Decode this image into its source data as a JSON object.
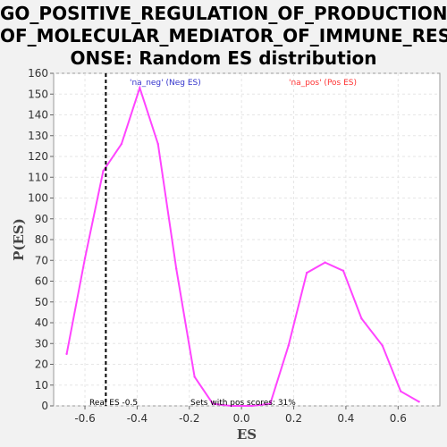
{
  "title_lines": [
    "GO_POSITIVE_REGULATION_OF_PRODUCTION_",
    "OF_MOLECULAR_MEDIATOR_OF_IMMUNE_RESP",
    "ONSE: Random ES distribution"
  ],
  "colors": {
    "line": "#ff44ff",
    "neg_label": "#3333cc",
    "pos_label": "#ff3333",
    "plot_bg": "#ffffff",
    "grid": "#e6e6e6",
    "real_es_line": "#000000"
  },
  "chart_data": {
    "type": "line",
    "title": "GO_POSITIVE_REGULATION_OF_PRODUCTION_OF_MOLECULAR_MEDIATOR_OF_IMMUNE_RESPONSE: Random ES distribution",
    "xlabel": "ES",
    "ylabel": "P(ES)",
    "xlim": [
      -0.72,
      0.76
    ],
    "ylim": [
      0,
      160
    ],
    "xticks": [
      -0.6,
      -0.4,
      -0.2,
      0.0,
      0.2,
      0.4,
      0.6
    ],
    "xtick_labels": [
      "-0.6",
      "-0.4",
      "-0.2",
      "0.0",
      "0.2",
      "0.4",
      "0.6"
    ],
    "yticks": [
      0,
      10,
      20,
      30,
      40,
      50,
      60,
      70,
      80,
      90,
      100,
      110,
      120,
      130,
      140,
      150,
      160
    ],
    "grid": true,
    "series": [
      {
        "x": [
          -0.67,
          -0.6,
          -0.53,
          -0.46,
          -0.39,
          -0.32,
          -0.25,
          -0.18,
          -0.11,
          -0.04,
          0.04,
          0.11,
          0.18,
          0.25,
          0.32,
          0.39,
          0.46,
          0.54,
          0.61,
          0.68
        ],
        "values": [
          25,
          71,
          113,
          126,
          153,
          126,
          66,
          14,
          1,
          0,
          0,
          1,
          29,
          64,
          69,
          65,
          42,
          29,
          7,
          2
        ]
      }
    ],
    "annotations": {
      "neg_label": "'na_neg' (Neg ES)",
      "pos_label": "'na_pos' (Pos ES)",
      "real_es_x": -0.52,
      "real_es_label": "Real ES -0.5",
      "pos_scores_label": "Sets with pos scores: 31%"
    }
  }
}
